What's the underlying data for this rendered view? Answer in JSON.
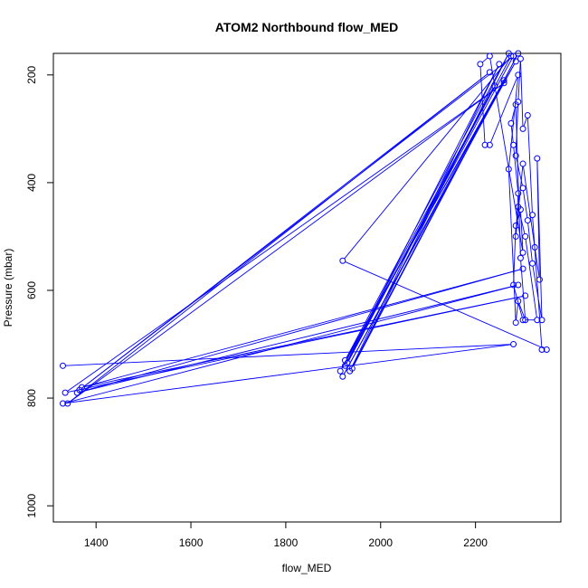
{
  "chart_data": {
    "type": "line",
    "title": "ATOM2 Northbound flow_MED",
    "xlabel": "flow_MED",
    "ylabel": "Pressure (mbar)",
    "xlim": [
      1310,
      2380
    ],
    "ylim": [
      1030,
      160
    ],
    "y_reversed": true,
    "grid": false,
    "legend": "none",
    "x_ticks": [
      1400,
      1600,
      1800,
      2000,
      2200
    ],
    "y_ticks": [
      200,
      400,
      600,
      800,
      1000
    ],
    "series": [
      {
        "color": "#0000ff",
        "marker": "circle-open",
        "points": [
          [
            1330,
            740
          ],
          [
            2280,
            700
          ],
          [
            1330,
            810
          ],
          [
            2290,
            590
          ],
          [
            1360,
            790
          ],
          [
            2300,
            560
          ],
          [
            1370,
            780
          ],
          [
            2305,
            610
          ],
          [
            1335,
            790
          ],
          [
            2260,
            215
          ],
          [
            1340,
            810
          ],
          [
            2230,
            195
          ],
          [
            1365,
            785
          ],
          [
            2280,
            165
          ],
          [
            1925,
            740
          ],
          [
            2250,
            180
          ],
          [
            1935,
            750
          ],
          [
            2290,
            160
          ],
          [
            1940,
            745
          ],
          [
            2270,
            160
          ],
          [
            1925,
            730
          ],
          [
            2285,
            175
          ],
          [
            1920,
            760
          ],
          [
            2260,
            210
          ],
          [
            1915,
            750
          ],
          [
            2240,
            220
          ],
          [
            1930,
            735
          ],
          [
            2275,
            165
          ],
          [
            1920,
            545
          ],
          [
            2350,
            710
          ],
          [
            2340,
            710
          ],
          [
            2320,
            460
          ],
          [
            2310,
            275
          ],
          [
            2300,
            300
          ],
          [
            2295,
            170
          ],
          [
            2290,
            250
          ],
          [
            2285,
            350
          ],
          [
            2300,
            410
          ],
          [
            2310,
            470
          ],
          [
            2320,
            550
          ],
          [
            2340,
            655
          ],
          [
            2330,
            355
          ],
          [
            2335,
            580
          ],
          [
            2325,
            520
          ],
          [
            2300,
            365
          ],
          [
            2285,
            500
          ],
          [
            2290,
            420
          ],
          [
            2280,
            330
          ],
          [
            2275,
            290
          ],
          [
            2285,
            255
          ],
          [
            2295,
            540
          ],
          [
            2305,
            655
          ],
          [
            2290,
            620
          ],
          [
            2285,
            660
          ],
          [
            2270,
            375
          ],
          [
            2290,
            200
          ],
          [
            2230,
            330
          ],
          [
            2220,
            330
          ],
          [
            2210,
            180
          ],
          [
            2230,
            165
          ],
          [
            2300,
            530
          ],
          [
            2295,
            450
          ],
          [
            2285,
            480
          ],
          [
            2280,
            590
          ],
          [
            2300,
            655
          ],
          [
            2330,
            655
          ],
          [
            2305,
            500
          ],
          [
            2290,
            445
          ]
        ]
      }
    ]
  }
}
